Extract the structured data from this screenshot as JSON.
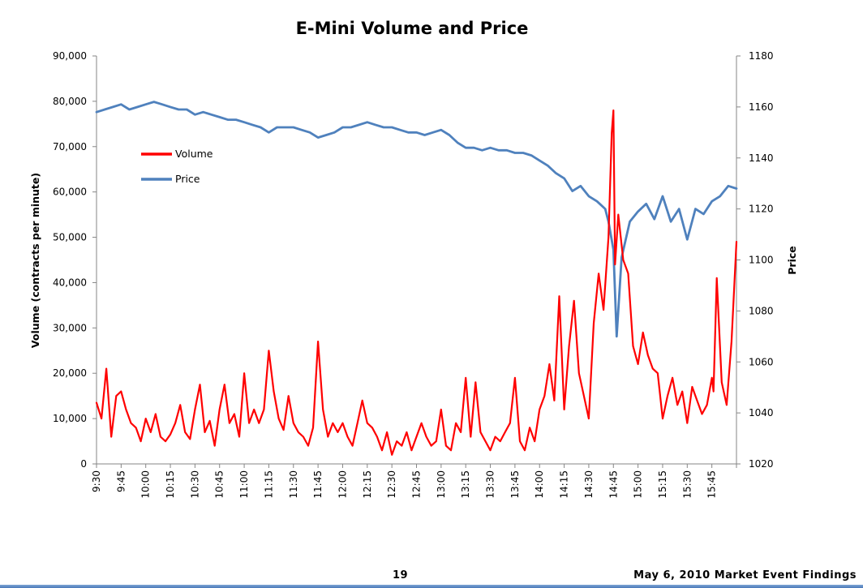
{
  "page": {
    "page_number": "19",
    "footer_text": "May 6, 2010 Market Event Findings"
  },
  "chart_data": {
    "type": "line",
    "title": "E-Mini Volume and Price",
    "xlabel": "",
    "ylabel": "Volume (contracts per minute)",
    "y2label": "Price",
    "ylim": [
      0,
      90000
    ],
    "y2lim": [
      1020,
      1180
    ],
    "y_ticks": [
      "0",
      "10,000",
      "20,000",
      "30,000",
      "40,000",
      "50,000",
      "60,000",
      "70,000",
      "80,000",
      "90,000"
    ],
    "y2_ticks": [
      "1020",
      "1040",
      "1060",
      "1080",
      "1100",
      "1120",
      "1140",
      "1160",
      "1180"
    ],
    "x_ticks": [
      "9:30",
      "9:45",
      "10:00",
      "10:15",
      "10:30",
      "10:45",
      "11:00",
      "11:15",
      "11:30",
      "11:45",
      "12:00",
      "12:15",
      "12:30",
      "12:45",
      "13:00",
      "13:15",
      "13:30",
      "13:45",
      "14:00",
      "14:15",
      "14:30",
      "14:45",
      "15:00",
      "15:15",
      "15:30",
      "15:45"
    ],
    "x_range": [
      "9:30",
      "16:00"
    ],
    "legend_position": "upper-left",
    "grid": false,
    "series": [
      {
        "name": "Volume",
        "axis": "left",
        "color": "#ff0000",
        "x": [
          "9:30",
          "9:33",
          "9:36",
          "9:39",
          "9:42",
          "9:45",
          "9:48",
          "9:51",
          "9:54",
          "9:57",
          "10:00",
          "10:03",
          "10:06",
          "10:09",
          "10:12",
          "10:15",
          "10:18",
          "10:21",
          "10:24",
          "10:27",
          "10:30",
          "10:33",
          "10:36",
          "10:39",
          "10:42",
          "10:45",
          "10:48",
          "10:51",
          "10:54",
          "10:57",
          "11:00",
          "11:03",
          "11:06",
          "11:09",
          "11:12",
          "11:15",
          "11:18",
          "11:21",
          "11:24",
          "11:27",
          "11:30",
          "11:33",
          "11:36",
          "11:39",
          "11:42",
          "11:45",
          "11:48",
          "11:51",
          "11:54",
          "11:57",
          "12:00",
          "12:03",
          "12:06",
          "12:09",
          "12:12",
          "12:15",
          "12:18",
          "12:21",
          "12:24",
          "12:27",
          "12:30",
          "12:33",
          "12:36",
          "12:39",
          "12:42",
          "12:45",
          "12:48",
          "12:51",
          "12:54",
          "12:57",
          "13:00",
          "13:03",
          "13:06",
          "13:09",
          "13:12",
          "13:15",
          "13:18",
          "13:21",
          "13:24",
          "13:27",
          "13:30",
          "13:33",
          "13:36",
          "13:39",
          "13:42",
          "13:45",
          "13:48",
          "13:51",
          "13:54",
          "13:57",
          "14:00",
          "14:03",
          "14:06",
          "14:09",
          "14:12",
          "14:15",
          "14:18",
          "14:21",
          "14:24",
          "14:27",
          "14:30",
          "14:33",
          "14:36",
          "14:39",
          "14:42",
          "14:44",
          "14:45",
          "14:46",
          "14:48",
          "14:51",
          "14:54",
          "14:57",
          "15:00",
          "15:03",
          "15:06",
          "15:09",
          "15:12",
          "15:15",
          "15:18",
          "15:21",
          "15:24",
          "15:27",
          "15:30",
          "15:33",
          "15:36",
          "15:39",
          "15:42",
          "15:45",
          "15:46",
          "15:48",
          "15:51",
          "15:54",
          "15:57",
          "16:00"
        ],
        "values": [
          13500,
          10000,
          21000,
          6000,
          15000,
          16000,
          12000,
          9000,
          8000,
          5000,
          10000,
          7000,
          11000,
          6000,
          5000,
          6500,
          9000,
          13000,
          7000,
          5500,
          12000,
          17500,
          7000,
          9500,
          4000,
          12000,
          17500,
          9000,
          11000,
          6000,
          20000,
          9000,
          12000,
          9000,
          12000,
          25000,
          16000,
          10000,
          7500,
          15000,
          9000,
          7000,
          6000,
          4000,
          8000,
          27000,
          12000,
          6000,
          9000,
          7000,
          9000,
          6000,
          4000,
          9000,
          14000,
          9000,
          8000,
          6000,
          3000,
          7000,
          2000,
          5000,
          4000,
          7000,
          3000,
          6000,
          9000,
          6000,
          4000,
          5000,
          12000,
          4000,
          3000,
          9000,
          7000,
          19000,
          6000,
          18000,
          7000,
          5000,
          3000,
          6000,
          5000,
          7000,
          9000,
          19000,
          5000,
          3000,
          8000,
          5000,
          12000,
          15000,
          22000,
          14000,
          37000,
          12000,
          26000,
          36000,
          20000,
          15000,
          10000,
          31000,
          42000,
          34000,
          50000,
          73000,
          78000,
          44000,
          55000,
          45000,
          42000,
          26000,
          22000,
          29000,
          24000,
          21000,
          20000,
          10000,
          15000,
          19000,
          13000,
          16000,
          9000,
          17000,
          14000,
          11000,
          13000,
          19000,
          16000,
          41000,
          18000,
          13000,
          27000,
          49000
        ]
      },
      {
        "name": "Price",
        "axis": "right",
        "color": "#4f81bd",
        "x": [
          "9:30",
          "9:35",
          "9:40",
          "9:45",
          "9:50",
          "9:55",
          "10:00",
          "10:05",
          "10:10",
          "10:15",
          "10:20",
          "10:25",
          "10:30",
          "10:35",
          "10:40",
          "10:45",
          "10:50",
          "10:55",
          "11:00",
          "11:05",
          "11:10",
          "11:15",
          "11:20",
          "11:25",
          "11:30",
          "11:35",
          "11:40",
          "11:45",
          "11:50",
          "11:55",
          "12:00",
          "12:05",
          "12:10",
          "12:15",
          "12:20",
          "12:25",
          "12:30",
          "12:35",
          "12:40",
          "12:45",
          "12:50",
          "12:55",
          "13:00",
          "13:05",
          "13:10",
          "13:15",
          "13:20",
          "13:25",
          "13:30",
          "13:35",
          "13:40",
          "13:45",
          "13:50",
          "13:55",
          "14:00",
          "14:05",
          "14:10",
          "14:15",
          "14:20",
          "14:25",
          "14:30",
          "14:35",
          "14:40",
          "14:42",
          "14:45",
          "14:47",
          "14:50",
          "14:55",
          "15:00",
          "15:05",
          "15:10",
          "15:15",
          "15:20",
          "15:25",
          "15:30",
          "15:35",
          "15:40",
          "15:45",
          "15:50",
          "15:55",
          "16:00"
        ],
        "values": [
          1158,
          1159,
          1160,
          1161,
          1159,
          1160,
          1161,
          1162,
          1161,
          1160,
          1159,
          1159,
          1157,
          1158,
          1157,
          1156,
          1155,
          1155,
          1154,
          1153,
          1152,
          1150,
          1152,
          1152,
          1152,
          1151,
          1150,
          1148,
          1149,
          1150,
          1152,
          1152,
          1153,
          1154,
          1153,
          1152,
          1152,
          1151,
          1150,
          1150,
          1149,
          1150,
          1151,
          1149,
          1146,
          1144,
          1144,
          1143,
          1144,
          1143,
          1143,
          1142,
          1142,
          1141,
          1139,
          1137,
          1134,
          1132,
          1127,
          1129,
          1125,
          1123,
          1120,
          1115,
          1104,
          1070,
          1101,
          1115,
          1119,
          1122,
          1116,
          1125,
          1115,
          1120,
          1108,
          1120,
          1118,
          1123,
          1125,
          1129,
          1128
        ]
      }
    ]
  }
}
